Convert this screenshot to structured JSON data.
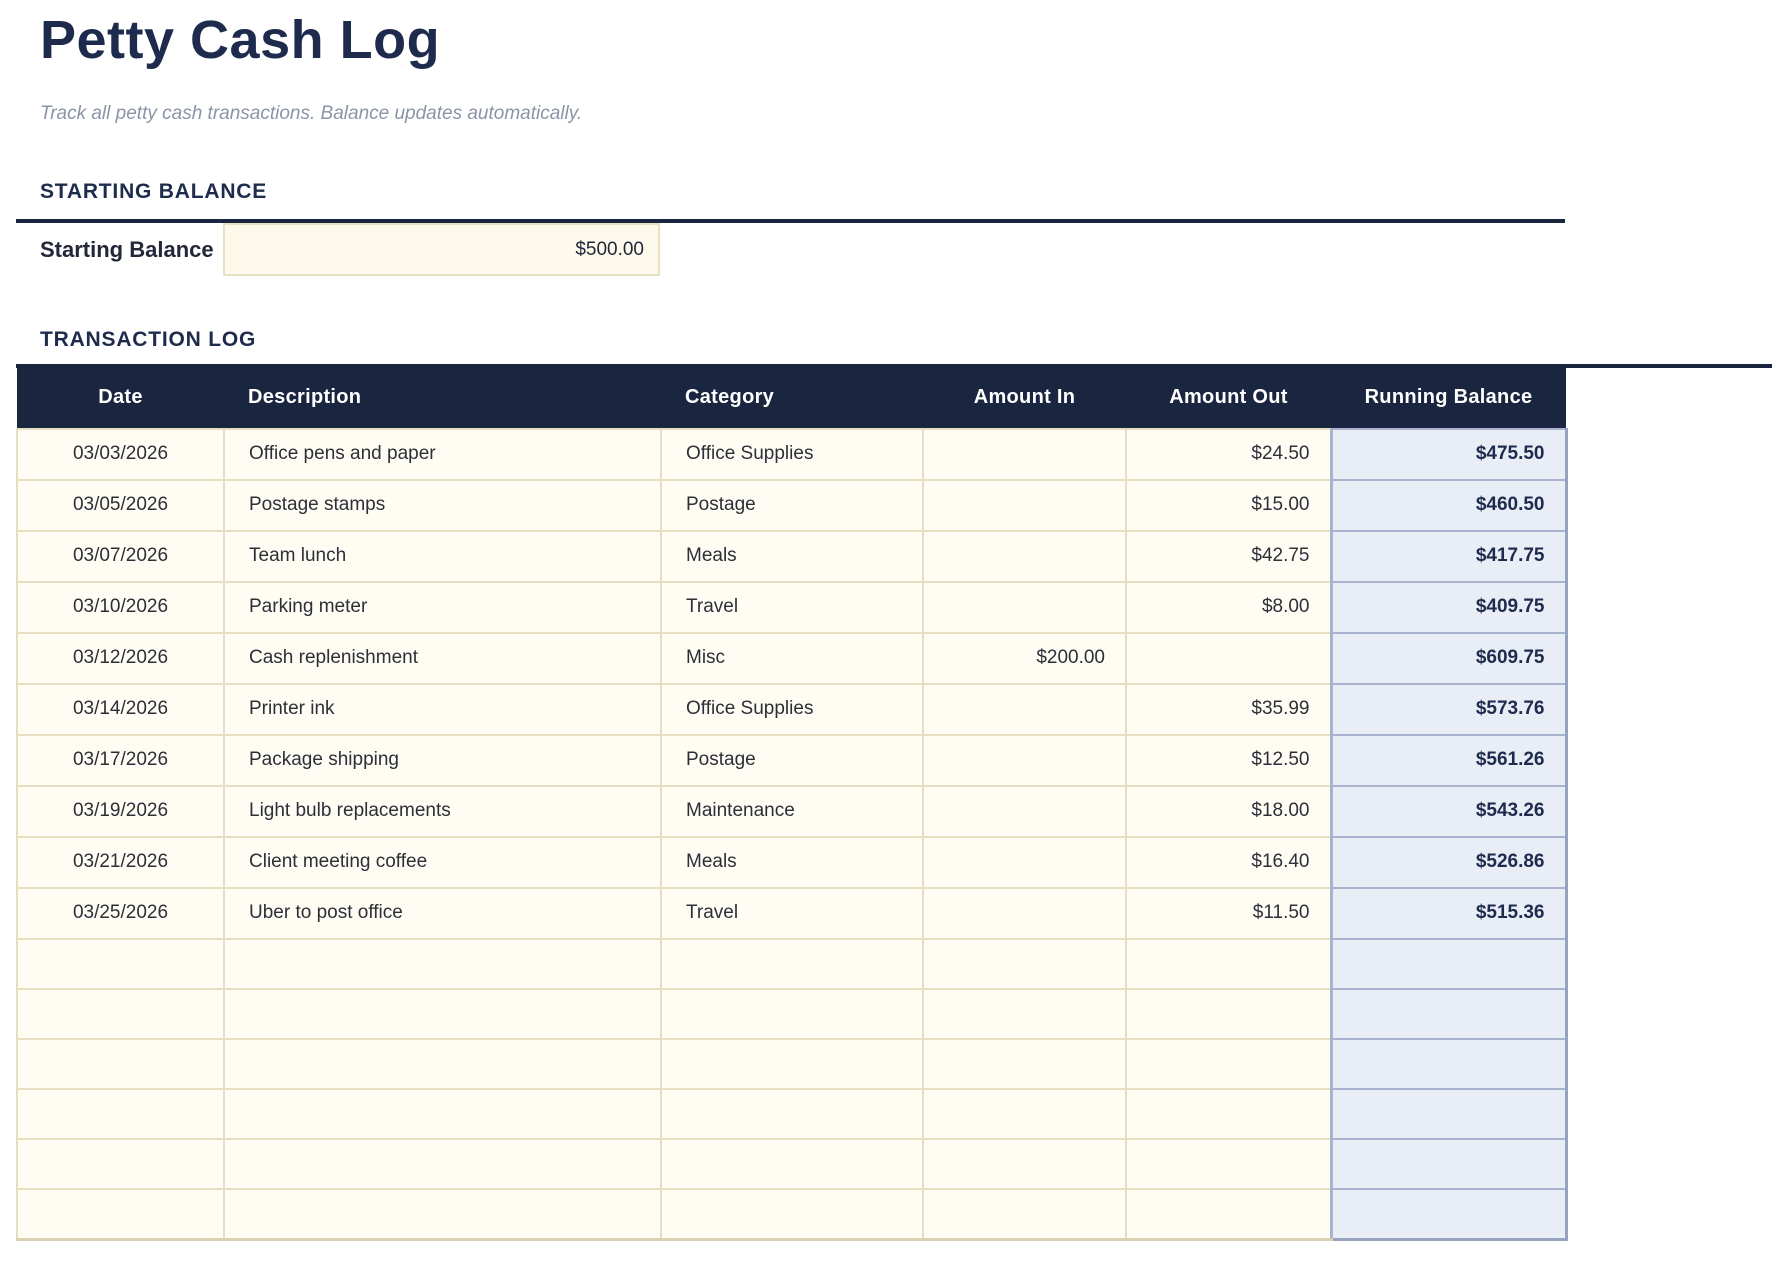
{
  "page": {
    "title": "Petty Cash Log",
    "subtitle": "Track all petty cash transactions. Balance updates automatically."
  },
  "starting_balance": {
    "heading": "STARTING BALANCE",
    "label": "Starting Balance",
    "value": "$500.00"
  },
  "transactions": {
    "heading": "TRANSACTION LOG",
    "columns": [
      "Date",
      "Description",
      "Category",
      "Amount In",
      "Amount Out",
      "Running Balance"
    ],
    "rows": [
      [
        "03/03/2026",
        "Office pens and paper",
        "Office Supplies",
        "",
        "$24.50",
        "$475.50"
      ],
      [
        "03/05/2026",
        "Postage stamps",
        "Postage",
        "",
        "$15.00",
        "$460.50"
      ],
      [
        "03/07/2026",
        "Team lunch",
        "Meals",
        "",
        "$42.75",
        "$417.75"
      ],
      [
        "03/10/2026",
        "Parking meter",
        "Travel",
        "",
        "$8.00",
        "$409.75"
      ],
      [
        "03/12/2026",
        "Cash replenishment",
        "Misc",
        "$200.00",
        "",
        "$609.75"
      ],
      [
        "03/14/2026",
        "Printer ink",
        "Office Supplies",
        "",
        "$35.99",
        "$573.76"
      ],
      [
        "03/17/2026",
        "Package shipping",
        "Postage",
        "",
        "$12.50",
        "$561.26"
      ],
      [
        "03/19/2026",
        "Light bulb replacements",
        "Maintenance",
        "",
        "$18.00",
        "$543.26"
      ],
      [
        "03/21/2026",
        "Client meeting coffee",
        "Meals",
        "",
        "$16.40",
        "$526.86"
      ],
      [
        "03/25/2026",
        "Uber to post office",
        "Travel",
        "",
        "$11.50",
        "$515.36"
      ]
    ],
    "empty_row_count": 6
  },
  "colors": {
    "navy": "#1a2540",
    "navy_text": "#1e2b4d",
    "cream_cell": "#fffdf3",
    "tan_border": "#e5dec2",
    "balance_bg": "#e9edf6",
    "balance_border": "#a9b2ce",
    "balance_edge": "#97a1c0",
    "input_bg": "#fdfaec",
    "input_border": "#e9e1c4",
    "subtitle_gray": "#8b94a7",
    "text_dark": "#2c2f38",
    "table_bottom_border": "#d8d1b2"
  }
}
